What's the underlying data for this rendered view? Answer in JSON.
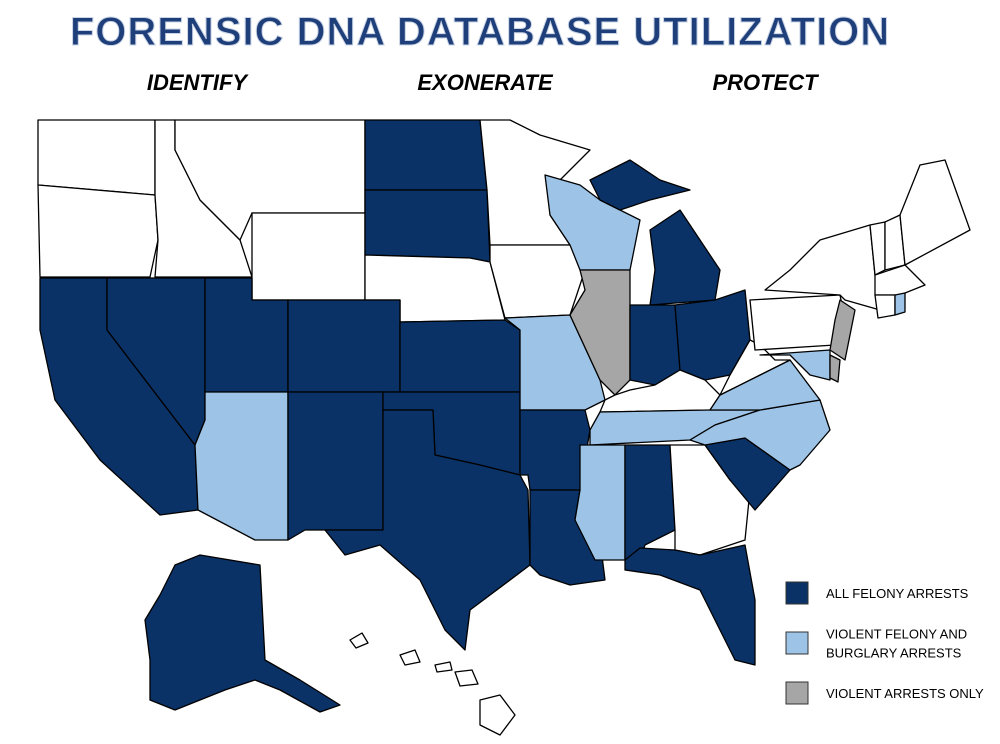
{
  "header": {
    "title": "FORENSIC DNA DATABASE UTILIZATION",
    "words": [
      "IDENTIFY",
      "EXONERATE",
      "PROTECT"
    ]
  },
  "legend": [
    {
      "lines": [
        "ALL FELONY ARRESTS"
      ],
      "color": "#0b3266"
    },
    {
      "lines": [
        "VIOLENT FELONY AND",
        "BURGLARY ARRESTS"
      ],
      "color": "#9dc3e6"
    },
    {
      "lines": [
        "VIOLENT ARRESTS ONLY"
      ],
      "color": "#a6a6a6"
    }
  ]
}
